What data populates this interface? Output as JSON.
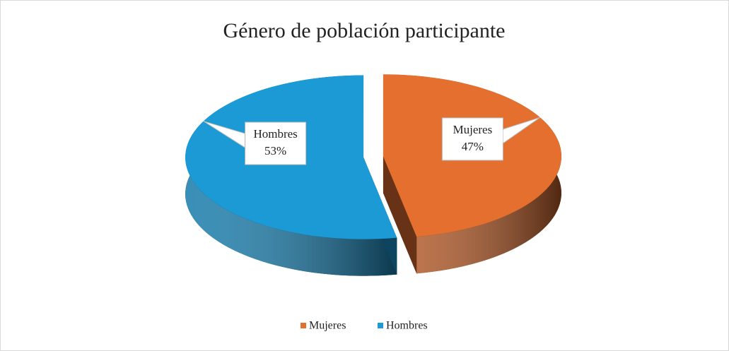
{
  "chart_data": {
    "type": "pie3d",
    "title": "Género de población participante",
    "categories": [
      "Mujeres",
      "Hombres"
    ],
    "values": [
      47,
      53
    ],
    "value_labels": [
      "47%",
      "53%"
    ],
    "colors": [
      "#e46f2e",
      "#1c9ad6"
    ],
    "legend": "bottom"
  }
}
